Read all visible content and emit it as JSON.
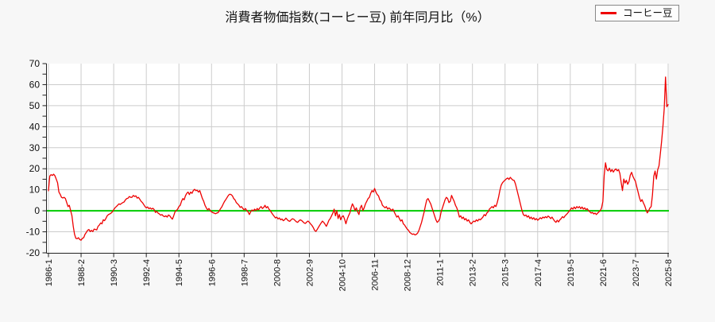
{
  "header": {
    "title": "消費者物価指数(コーヒー豆) 前年同月比（%）"
  },
  "legend": {
    "items": [
      {
        "label": "コーヒー豆",
        "color": "#ee0000"
      }
    ]
  },
  "colors": {
    "page_background": "#f7f7f7",
    "plot_background": "#ffffff",
    "grid": "#cccccc",
    "axis": "#222222",
    "zero_line": "#00cc00",
    "series": "#ee0000",
    "legend_border": "#888888",
    "legend_background": "#fdfdfd",
    "text": "#111111"
  },
  "chart_data": {
    "type": "line",
    "title": "消費者物価指数(コーヒー豆) 前年同月比（%）",
    "xlabel": "",
    "ylabel": "",
    "ylim": [
      -20,
      70
    ],
    "y_tick_step": 10,
    "y_minor_tick_step": 5,
    "y_tick_labels": [
      "70",
      "60",
      "50",
      "40",
      "30",
      "20",
      "10",
      "0",
      "-10",
      "-20"
    ],
    "grid": true,
    "legend_position": "top-right",
    "x_start": "1986-1",
    "x_end": "2025-8",
    "frequency": "monthly",
    "x_tick_interval_months": 25,
    "x_tick_labels": [
      "1986-1",
      "1988-2",
      "1990-3",
      "1992-4",
      "1994-5",
      "1996-6",
      "1998-7",
      "2000-8",
      "2002-9",
      "2004-10",
      "2006-11",
      "2008-12",
      "2011-1",
      "2013-2",
      "2015-3",
      "2017-4",
      "2019-5",
      "2021-6",
      "2023-7",
      "2025-8"
    ],
    "series": [
      {
        "name": "コーヒー豆",
        "color": "#ee0000",
        "values": [
          9.5,
          16.5,
          17.2,
          16.8,
          17.4,
          16.6,
          15.0,
          13.3,
          8.9,
          7.8,
          6.4,
          6.1,
          6.4,
          5.8,
          3.9,
          2.0,
          2.6,
          0.1,
          -2.4,
          -7.4,
          -11.2,
          -13.1,
          -13.3,
          -12.8,
          -13.7,
          -14.0,
          -13.1,
          -12.8,
          -11.2,
          -10.3,
          -9.3,
          -8.9,
          -9.9,
          -9.3,
          -9.9,
          -8.7,
          -8.9,
          -9.1,
          -7.4,
          -6.8,
          -5.8,
          -6.2,
          -4.3,
          -4.7,
          -3.7,
          -2.4,
          -1.8,
          -1.5,
          -1.1,
          -0.5,
          0.5,
          1.4,
          2.0,
          2.6,
          3.3,
          3.0,
          3.5,
          3.9,
          4.2,
          5.2,
          5.8,
          6.0,
          6.8,
          6.4,
          6.4,
          7.3,
          6.8,
          7.1,
          6.0,
          6.4,
          5.5,
          4.5,
          3.9,
          3.0,
          2.0,
          1.4,
          1.8,
          1.0,
          1.4,
          0.8,
          1.2,
          0.6,
          -0.8,
          -0.3,
          -1.1,
          -1.5,
          -2.1,
          -1.8,
          -2.5,
          -2.8,
          -2.4,
          -3.0,
          -2.0,
          -2.4,
          -3.3,
          -4.0,
          -2.4,
          -0.5,
          0.1,
          0.8,
          2.0,
          2.6,
          4.5,
          5.8,
          5.2,
          7.1,
          8.3,
          8.9,
          7.7,
          8.9,
          8.3,
          9.6,
          10.2,
          9.6,
          9.8,
          8.9,
          9.6,
          7.7,
          5.8,
          4.5,
          2.6,
          1.4,
          0.4,
          1.1,
          0.1,
          -0.5,
          -0.9,
          -1.1,
          -1.4,
          -1.1,
          -0.9,
          0.1,
          1.1,
          2.0,
          3.3,
          4.5,
          5.4,
          6.4,
          7.4,
          7.9,
          7.7,
          7.1,
          5.8,
          5.2,
          3.9,
          3.3,
          2.6,
          1.6,
          2.0,
          1.1,
          0.4,
          1.1,
          0.1,
          -0.5,
          -1.8,
          -0.5,
          0.4,
          -0.1,
          0.8,
          0.1,
          1.1,
          0.4,
          1.4,
          2.0,
          1.1,
          1.6,
          2.6,
          1.4,
          2.0,
          0.8,
          0.1,
          -0.9,
          -1.8,
          -2.6,
          -3.4,
          -3.0,
          -3.9,
          -3.4,
          -4.3,
          -3.9,
          -4.7,
          -4.3,
          -3.5,
          -4.2,
          -4.8,
          -5.0,
          -4.3,
          -3.8,
          -4.0,
          -4.6,
          -5.2,
          -5.5,
          -4.8,
          -4.3,
          -4.6,
          -5.2,
          -5.8,
          -6.0,
          -5.3,
          -4.9,
          -5.5,
          -6.3,
          -7.0,
          -8.0,
          -9.3,
          -9.8,
          -8.9,
          -7.8,
          -6.8,
          -5.8,
          -4.9,
          -5.5,
          -6.4,
          -7.4,
          -6.0,
          -4.5,
          -3.7,
          -2.4,
          -1.1,
          0.8,
          -2.4,
          0.1,
          -3.7,
          -1.8,
          -4.3,
          -2.8,
          -2.4,
          -4.0,
          -6.2,
          -4.0,
          -2.4,
          -1.1,
          1.4,
          3.3,
          2.0,
          0.1,
          1.4,
          -0.5,
          -1.8,
          1.4,
          2.6,
          0.1,
          1.4,
          3.3,
          4.5,
          5.8,
          6.4,
          8.3,
          9.6,
          8.9,
          10.6,
          8.9,
          7.7,
          7.1,
          5.2,
          4.5,
          2.6,
          2.0,
          1.4,
          2.0,
          0.8,
          1.4,
          0.8,
          0.1,
          0.8,
          -0.5,
          -1.8,
          -3.0,
          -2.4,
          -3.7,
          -4.9,
          -4.3,
          -6.2,
          -6.8,
          -7.8,
          -8.7,
          -9.3,
          -10.3,
          -10.8,
          -11.2,
          -11.0,
          -11.5,
          -11.2,
          -10.6,
          -9.3,
          -7.4,
          -5.5,
          -3.0,
          -0.5,
          2.6,
          5.2,
          5.8,
          4.5,
          3.3,
          1.4,
          -0.5,
          -2.4,
          -4.3,
          -5.5,
          -4.9,
          -3.7,
          -0.5,
          1.4,
          3.3,
          5.2,
          6.4,
          5.8,
          3.9,
          4.5,
          7.3,
          5.8,
          4.5,
          2.6,
          1.4,
          -0.5,
          -3.0,
          -2.4,
          -3.7,
          -3.0,
          -4.3,
          -3.7,
          -4.9,
          -4.3,
          -5.5,
          -6.2,
          -5.5,
          -4.9,
          -5.2,
          -4.3,
          -4.9,
          -4.0,
          -4.3,
          -3.7,
          -3.0,
          -1.8,
          -2.4,
          -1.1,
          -0.5,
          0.8,
          1.4,
          2.0,
          1.4,
          2.6,
          2.0,
          3.9,
          6.4,
          9.6,
          12.1,
          13.3,
          14.0,
          14.6,
          15.2,
          15.6,
          14.9,
          15.9,
          15.2,
          14.6,
          14.4,
          12.7,
          10.2,
          7.7,
          5.2,
          2.6,
          0.1,
          -1.8,
          -2.4,
          -2.0,
          -3.0,
          -2.4,
          -3.7,
          -3.0,
          -4.0,
          -3.3,
          -4.3,
          -3.7,
          -4.5,
          -4.0,
          -3.3,
          -3.8,
          -3.0,
          -3.4,
          -2.8,
          -3.3,
          -2.5,
          -3.0,
          -3.7,
          -3.0,
          -4.0,
          -4.9,
          -5.5,
          -4.5,
          -5.3,
          -4.3,
          -3.7,
          -2.8,
          -3.3,
          -2.4,
          -1.8,
          -1.1,
          -0.3,
          0.5,
          1.4,
          0.8,
          1.8,
          1.0,
          2.0,
          1.4,
          2.0,
          1.0,
          1.8,
          0.8,
          1.4,
          0.5,
          1.0,
          0.1,
          -0.5,
          -1.1,
          -0.8,
          -1.5,
          -1.1,
          -1.8,
          -1.1,
          -0.5,
          0.1,
          1.4,
          4.5,
          17.0,
          22.8,
          19.6,
          19.0,
          20.3,
          18.6,
          19.6,
          18.4,
          19.4,
          19.9,
          19.0,
          19.6,
          17.8,
          13.5,
          9.6,
          15.1,
          13.2,
          14.5,
          12.6,
          13.9,
          17.0,
          18.3,
          16.4,
          15.1,
          13.9,
          11.3,
          8.8,
          6.3,
          4.4,
          5.3,
          3.8,
          2.5,
          0.6,
          -1.0,
          0.0,
          1.3,
          2.0,
          7.6,
          16.4,
          18.9,
          15.1,
          19.5,
          21.4,
          27.0,
          33.0,
          40.0,
          48.5,
          63.6,
          49.5,
          50.5
        ]
      }
    ]
  }
}
